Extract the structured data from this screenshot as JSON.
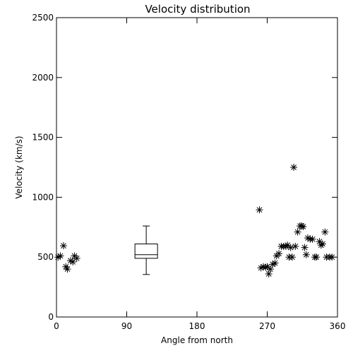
{
  "chart_data": {
    "type": "scatter",
    "title": "Velocity distribution",
    "xlabel": "Angle from north",
    "ylabel": "Velocity (km/s)",
    "xlim": [
      0,
      360
    ],
    "ylim": [
      0,
      2500
    ],
    "xticks": [
      0,
      90,
      180,
      270,
      360
    ],
    "yticks": [
      0,
      500,
      1000,
      1500,
      2000,
      2500
    ],
    "marker": "asterisk",
    "grid": false,
    "points": [
      {
        "x": 2,
        "y": 500
      },
      {
        "x": 5,
        "y": 510
      },
      {
        "x": 9,
        "y": 595
      },
      {
        "x": 12,
        "y": 420
      },
      {
        "x": 14,
        "y": 400
      },
      {
        "x": 18,
        "y": 470
      },
      {
        "x": 21,
        "y": 460
      },
      {
        "x": 23,
        "y": 510
      },
      {
        "x": 26,
        "y": 490
      },
      {
        "x": 260,
        "y": 895
      },
      {
        "x": 262,
        "y": 410
      },
      {
        "x": 265,
        "y": 420
      },
      {
        "x": 268,
        "y": 415
      },
      {
        "x": 270,
        "y": 420
      },
      {
        "x": 272,
        "y": 360
      },
      {
        "x": 274,
        "y": 400
      },
      {
        "x": 277,
        "y": 440
      },
      {
        "x": 280,
        "y": 450
      },
      {
        "x": 282,
        "y": 510
      },
      {
        "x": 285,
        "y": 530
      },
      {
        "x": 288,
        "y": 590
      },
      {
        "x": 291,
        "y": 590
      },
      {
        "x": 294,
        "y": 590
      },
      {
        "x": 296,
        "y": 600
      },
      {
        "x": 298,
        "y": 500
      },
      {
        "x": 300,
        "y": 580
      },
      {
        "x": 302,
        "y": 500
      },
      {
        "x": 304,
        "y": 1250
      },
      {
        "x": 306,
        "y": 590
      },
      {
        "x": 309,
        "y": 710
      },
      {
        "x": 312,
        "y": 760
      },
      {
        "x": 314,
        "y": 760
      },
      {
        "x": 316,
        "y": 755
      },
      {
        "x": 318,
        "y": 580
      },
      {
        "x": 320,
        "y": 520
      },
      {
        "x": 322,
        "y": 660
      },
      {
        "x": 325,
        "y": 650
      },
      {
        "x": 328,
        "y": 650
      },
      {
        "x": 331,
        "y": 500
      },
      {
        "x": 333,
        "y": 500
      },
      {
        "x": 337,
        "y": 630
      },
      {
        "x": 339,
        "y": 600
      },
      {
        "x": 341,
        "y": 610
      },
      {
        "x": 344,
        "y": 710
      },
      {
        "x": 346,
        "y": 500
      },
      {
        "x": 350,
        "y": 500
      },
      {
        "x": 353,
        "y": 500
      }
    ],
    "boxplot": {
      "x": 115,
      "whisker_low": 355,
      "q1": 490,
      "median": 520,
      "q3": 610,
      "whisker_high": 760
    }
  }
}
